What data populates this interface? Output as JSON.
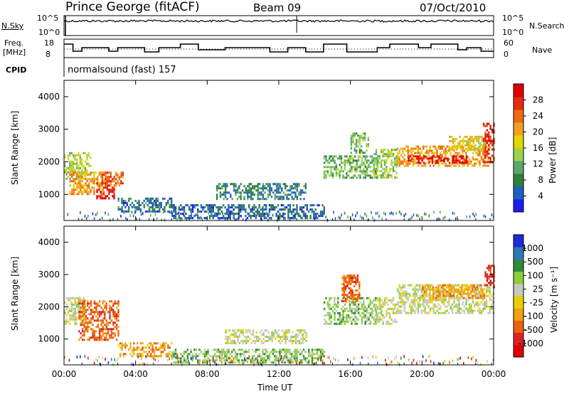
{
  "header": {
    "title": "Prince George (fitACF)",
    "beam": "Beam 09",
    "date": "07/Oct/2010"
  },
  "strip_labels": {
    "nsky": "N.Sky",
    "nsky_ticks": [
      "10^5",
      "10^0"
    ],
    "nsearch": "N.Search",
    "nsearch_ticks": [
      "10^5",
      "10^0"
    ],
    "freq_line1": "Freq.",
    "freq_line2": "[MHz]",
    "freq_ticks": [
      "18",
      "8"
    ],
    "nave": "Nave",
    "nave_ticks": [
      "60",
      "0"
    ],
    "cpid": "CPID",
    "cpid_value": "normalsound (fast) 157"
  },
  "colors": {
    "axis": "#000000",
    "nave_dotted": "#000000",
    "power_scale": [
      "#1c1cf0",
      "#2060c0",
      "#2f7f3f",
      "#5ca86b",
      "#9fd24a",
      "#e2d400",
      "#f0a020",
      "#ef6a10",
      "#e62a10",
      "#e00000"
    ],
    "velocity_scale": [
      "#1c2cd8",
      "#2f78b8",
      "#2f8a3a",
      "#8ccd3c",
      "#c8c8c0",
      "#e8d000",
      "#f0a010",
      "#e86010",
      "#e02020",
      "#e00000"
    ]
  },
  "chart_data": [
    {
      "type": "heatmap",
      "name": "power",
      "ylabel": "Slant Range [km]",
      "yticks": [
        "1000",
        "2000",
        "3000",
        "4000"
      ],
      "ylim": [
        200,
        4500
      ],
      "xlim": [
        0,
        24
      ],
      "xticks": [
        "00:00",
        "04:00",
        "08:00",
        "12:00",
        "16:00",
        "20:00",
        "00:00"
      ],
      "colorbar": {
        "label": "Power [dB]",
        "ticks": [
          "4",
          "8",
          "12",
          "16",
          "20",
          "24",
          "28"
        ],
        "range": [
          0,
          30
        ]
      },
      "regions": [
        {
          "t0": 0.0,
          "t1": 1.5,
          "r0": 1500,
          "r1": 2300,
          "level": 14
        },
        {
          "t0": 0.3,
          "t1": 2.2,
          "r0": 1000,
          "r1": 1700,
          "level": 20
        },
        {
          "t0": 1.8,
          "t1": 2.8,
          "r0": 900,
          "r1": 1500,
          "level": 27
        },
        {
          "t0": 2.0,
          "t1": 3.3,
          "r0": 1300,
          "r1": 1700,
          "level": 22
        },
        {
          "t0": 3.0,
          "t1": 6.0,
          "r0": 500,
          "r1": 900,
          "level": 6
        },
        {
          "t0": 6.0,
          "t1": 14.5,
          "r0": 300,
          "r1": 700,
          "level": 5
        },
        {
          "t0": 8.5,
          "t1": 13.5,
          "r0": 850,
          "r1": 1350,
          "level": 7
        },
        {
          "t0": 14.5,
          "t1": 17.5,
          "r0": 1500,
          "r1": 2200,
          "level": 11
        },
        {
          "t0": 16.0,
          "t1": 17.0,
          "r0": 2300,
          "r1": 2900,
          "level": 12
        },
        {
          "t0": 17.3,
          "t1": 18.6,
          "r0": 1500,
          "r1": 2400,
          "level": 13
        },
        {
          "t0": 18.6,
          "t1": 23.7,
          "r0": 1900,
          "r1": 2500,
          "level": 20
        },
        {
          "t0": 19.2,
          "t1": 22.5,
          "r0": 2000,
          "r1": 2200,
          "level": 28
        },
        {
          "t0": 21.5,
          "t1": 23.8,
          "r0": 2400,
          "r1": 2800,
          "level": 17
        },
        {
          "t0": 23.4,
          "t1": 24.0,
          "r0": 2000,
          "r1": 3200,
          "level": 26
        }
      ]
    },
    {
      "type": "heatmap",
      "name": "velocity",
      "ylabel": "Slant Range [km]",
      "yticks": [
        "1000",
        "2000",
        "3000",
        "4000"
      ],
      "ylim": [
        200,
        4500
      ],
      "xlim": [
        0,
        24
      ],
      "xticks": [
        "00:00",
        "04:00",
        "08:00",
        "12:00",
        "16:00",
        "20:00",
        "00:00"
      ],
      "xlabel": "Time UT",
      "colorbar": {
        "label": "Velocity [m s⁻¹]",
        "ticks": [
          "1000",
          "500",
          "100",
          "25",
          "-25",
          "-100",
          "-500",
          "-1000"
        ]
      },
      "regions": [
        {
          "t0": 0.0,
          "t1": 1.2,
          "r0": 1500,
          "r1": 2300,
          "level": 4
        },
        {
          "t0": 0.8,
          "t1": 3.0,
          "r0": 1000,
          "r1": 2200,
          "level": 7
        },
        {
          "t0": 3.0,
          "t1": 6.0,
          "r0": 500,
          "r1": 900,
          "level": 6
        },
        {
          "t0": 6.0,
          "t1": 14.5,
          "r0": 300,
          "r1": 700,
          "level": 3
        },
        {
          "t0": 9.0,
          "t1": 13.5,
          "r0": 900,
          "r1": 1300,
          "level": 4
        },
        {
          "t0": 14.5,
          "t1": 17.5,
          "r0": 1500,
          "r1": 2300,
          "level": 3
        },
        {
          "t0": 15.5,
          "t1": 16.5,
          "r0": 2200,
          "r1": 3000,
          "level": 7
        },
        {
          "t0": 17.3,
          "t1": 18.6,
          "r0": 1500,
          "r1": 2300,
          "level": 4
        },
        {
          "t0": 18.6,
          "t1": 24.0,
          "r0": 1800,
          "r1": 2700,
          "level": 4
        },
        {
          "t0": 20.0,
          "t1": 23.5,
          "r0": 2300,
          "r1": 2700,
          "level": 6
        },
        {
          "t0": 23.5,
          "t1": 24.0,
          "r0": 2600,
          "r1": 3300,
          "level": 8
        }
      ]
    }
  ]
}
